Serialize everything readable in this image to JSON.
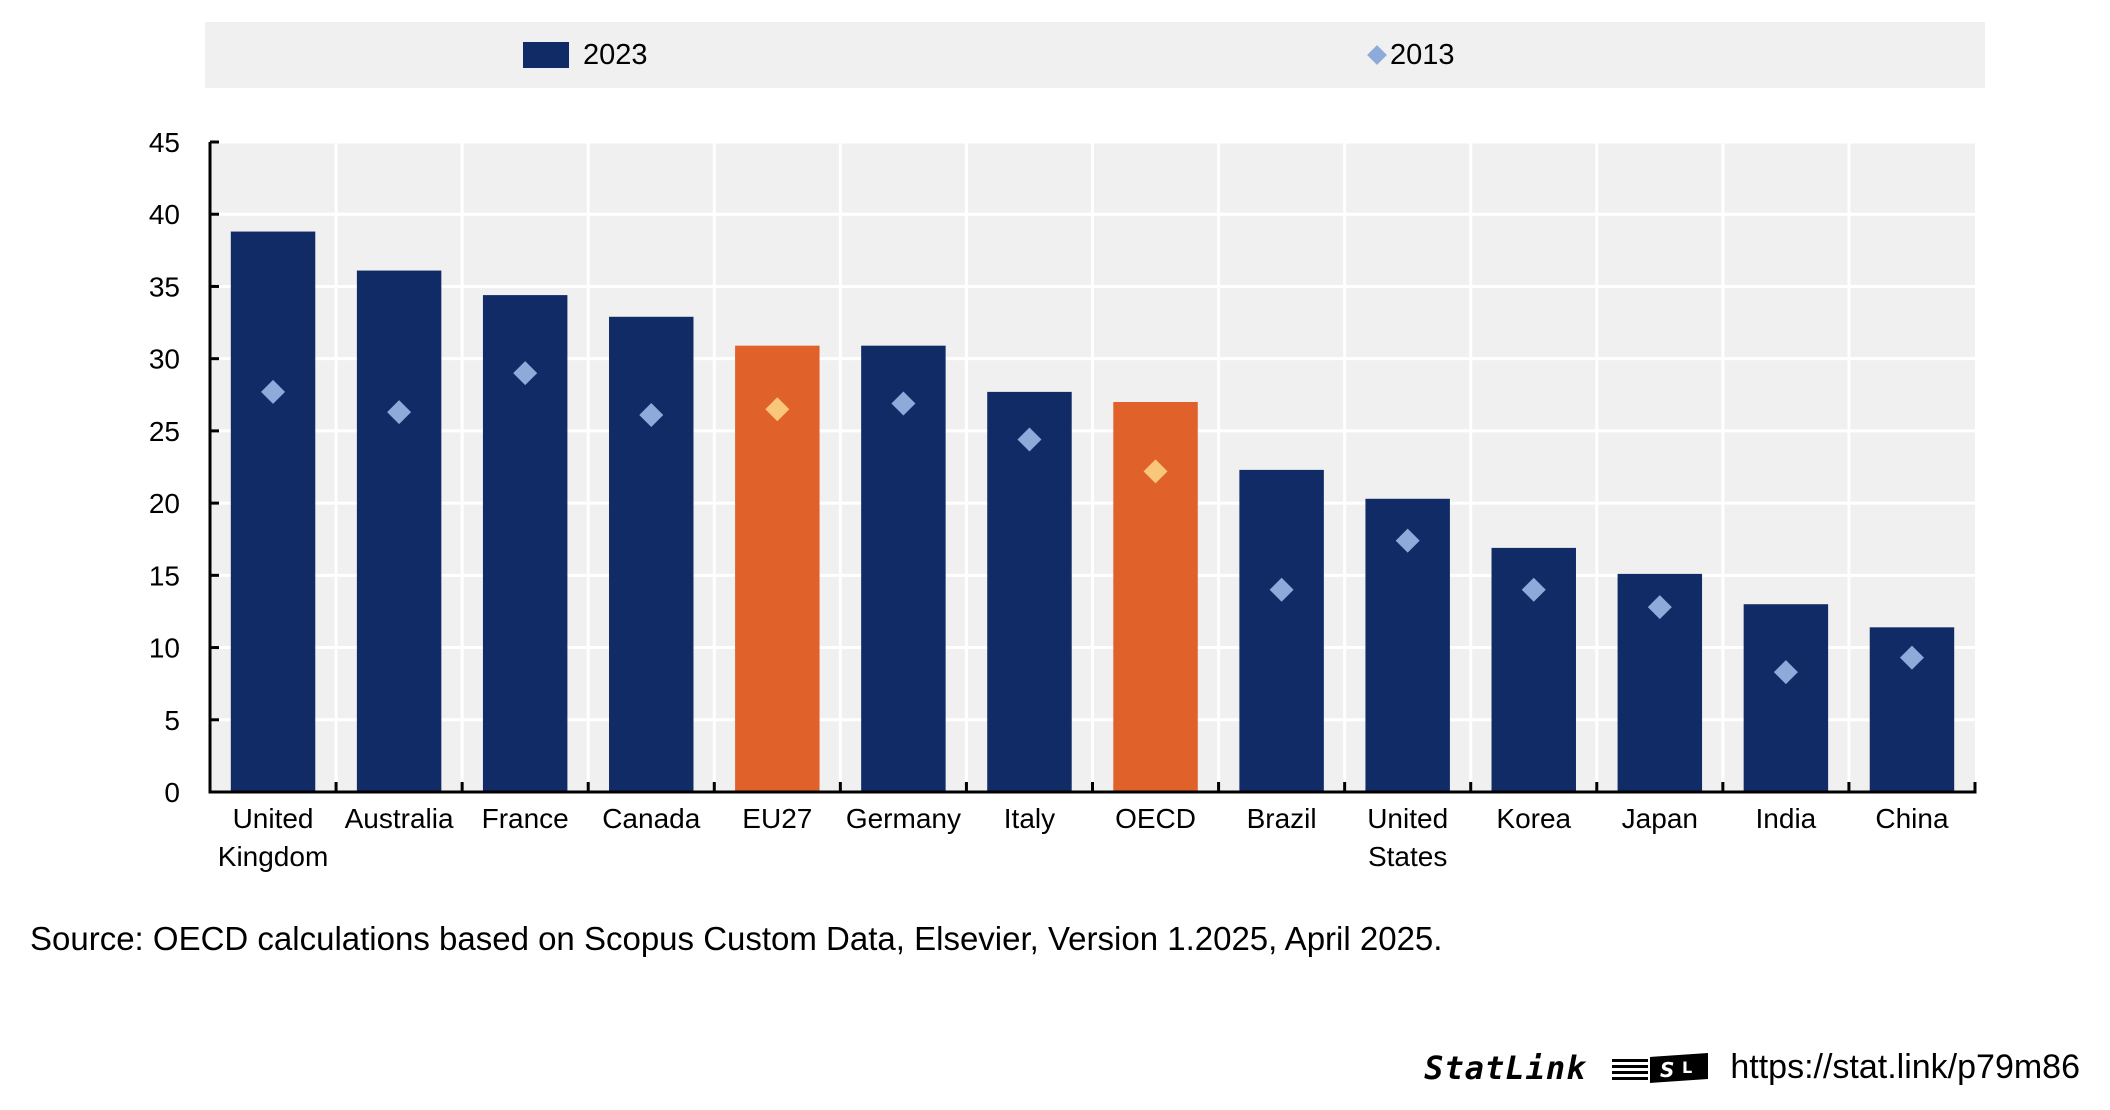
{
  "chart_data": {
    "type": "bar",
    "title": "",
    "xlabel": "",
    "ylabel": "",
    "ylim": [
      0,
      45
    ],
    "yticks": [
      0,
      5,
      10,
      15,
      20,
      25,
      30,
      35,
      40,
      45
    ],
    "grid": true,
    "legend_position": "top",
    "categories": [
      "United Kingdom",
      "Australia",
      "France",
      "Canada",
      "EU27",
      "Germany",
      "Italy",
      "OECD",
      "Brazil",
      "United States",
      "Korea",
      "Japan",
      "India",
      "China"
    ],
    "category_lines": [
      [
        "United",
        "Kingdom"
      ],
      [
        "Australia"
      ],
      [
        "France"
      ],
      [
        "Canada"
      ],
      [
        "EU27"
      ],
      [
        "Germany"
      ],
      [
        "Italy"
      ],
      [
        "OECD"
      ],
      [
        "Brazil"
      ],
      [
        "United",
        "States"
      ],
      [
        "Korea"
      ],
      [
        "Japan"
      ],
      [
        "India"
      ],
      [
        "China"
      ]
    ],
    "highlighted": [
      "EU27",
      "OECD"
    ],
    "series": [
      {
        "name": "2023",
        "kind": "bar",
        "values": [
          38.8,
          36.1,
          34.4,
          32.9,
          30.9,
          30.9,
          27.7,
          27.0,
          22.3,
          20.3,
          16.9,
          15.1,
          13.0,
          11.4
        ]
      },
      {
        "name": "2013",
        "kind": "diamond",
        "values": [
          27.7,
          26.3,
          29.0,
          26.1,
          26.5,
          26.9,
          24.4,
          22.2,
          14.0,
          17.4,
          14.0,
          12.8,
          8.3,
          9.3
        ]
      }
    ],
    "colors": {
      "bar": "#112b66",
      "bar_highlight": "#e0612a",
      "marker": "#8daadb",
      "marker_highlight": "#f8c77a",
      "plot_background": "#f0f0f0",
      "grid": "#ffffff"
    }
  },
  "legend": {
    "items": [
      {
        "label": "2023",
        "symbol": "bar"
      },
      {
        "label": "2013",
        "symbol": "diamond"
      }
    ]
  },
  "footer": {
    "source": "Source: OECD calculations based on Scopus Custom Data, Elsevier, Version 1.2025, April 2025.",
    "statlink_word": "StatLink",
    "statlink_url": "https://stat.link/p79m86"
  }
}
